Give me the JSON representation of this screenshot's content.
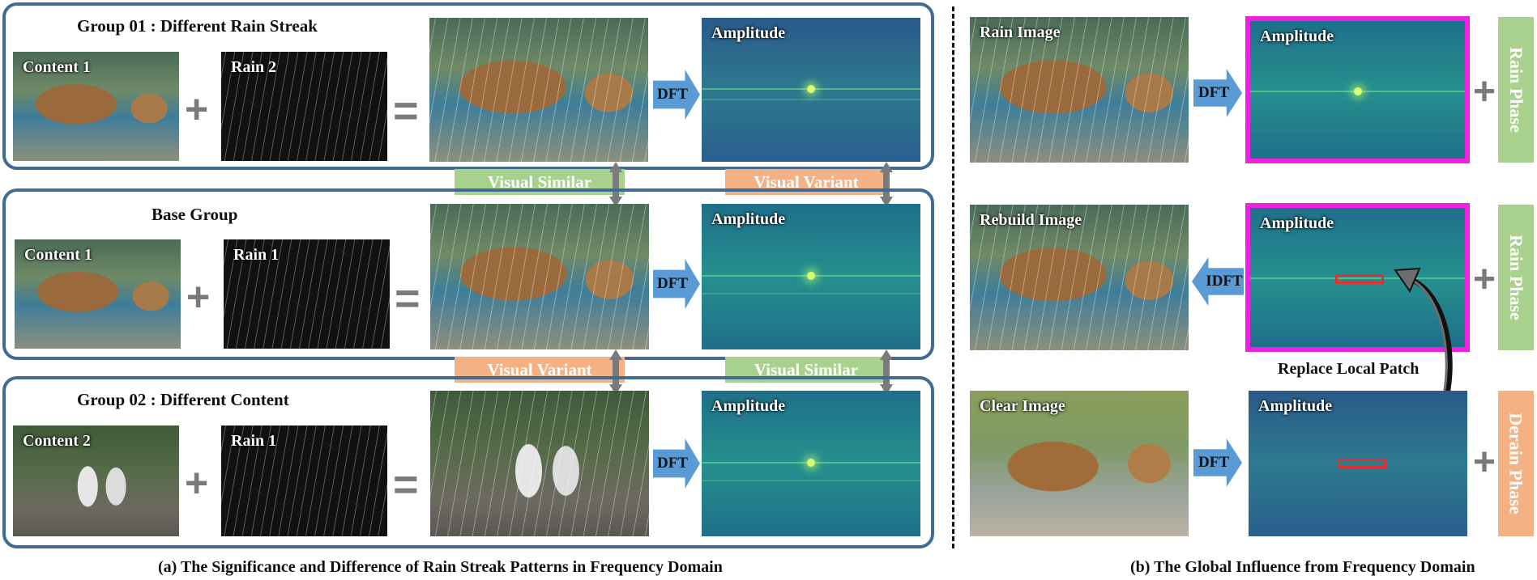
{
  "panel_a": {
    "group1": {
      "title": "Group 01 : Different Rain Streak",
      "content_label": "Content 1",
      "rain_label": "Rain 2",
      "amp_label": "Amplitude",
      "dft_label": "DFT"
    },
    "base": {
      "title": "Base Group",
      "content_label": "Content 1",
      "rain_label": "Rain 1",
      "amp_label": "Amplitude",
      "dft_label": "DFT"
    },
    "group2": {
      "title": "Group 02 : Different Content",
      "content_label": "Content 2",
      "rain_label": "Rain 1",
      "amp_label": "Amplitude",
      "dft_label": "DFT"
    },
    "tags": {
      "top_left": "Visual Similar",
      "top_right": "Visual Variant",
      "bottom_left": "Visual Variant",
      "bottom_right": "Visual Similar"
    },
    "operators": {
      "plus": "+",
      "equals": "="
    },
    "caption": "(a) The Significance and Difference of Rain Streak Patterns in Frequency Domain"
  },
  "panel_b": {
    "row1": {
      "image_label": "Rain Image",
      "amp_label": "Amplitude",
      "arrow_label": "DFT",
      "phase_label": "Rain Phase"
    },
    "row2": {
      "image_label": "Rebuild Image",
      "amp_label": "Amplitude",
      "arrow_label": "IDFT",
      "phase_label": "Rain Phase"
    },
    "row3": {
      "image_label": "Clear Image",
      "amp_label": "Amplitude",
      "arrow_label": "DFT",
      "phase_label": "Derain Phase"
    },
    "replace_label": "Replace Local Patch",
    "operators": {
      "plus": "+"
    },
    "caption": "(b) The Global Influence from Frequency Domain"
  },
  "colors": {
    "group_border": "#3f6b94",
    "arrow_blue": "#5b9bd5",
    "tag_green": "#a9d18e",
    "tag_orange": "#f4b183",
    "highlight_magenta": "#f020e0",
    "patch_red": "#e03030"
  }
}
